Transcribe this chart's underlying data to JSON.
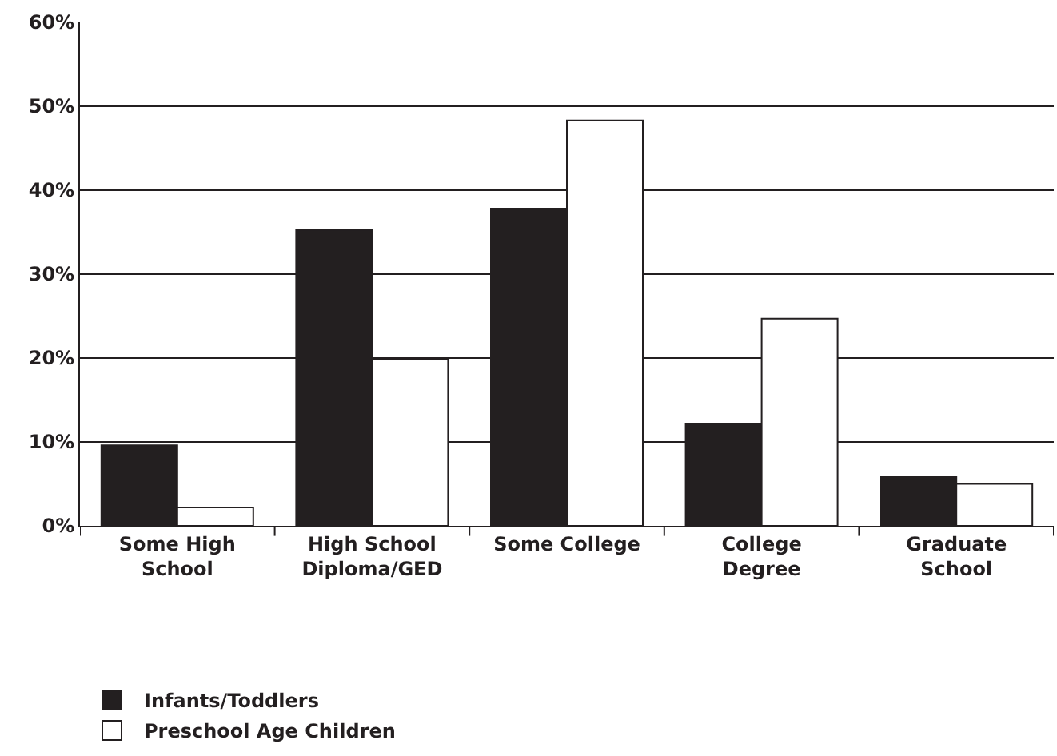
{
  "chart_data": {
    "type": "bar",
    "categories": [
      "Some High School",
      "High School Diploma/GED",
      "Some College",
      "College Degree",
      "Graduate School"
    ],
    "series": [
      {
        "name": "Infants/Toddlers",
        "color": "#231f20",
        "values": [
          9.6,
          35.3,
          37.8,
          12.2,
          5.8
        ]
      },
      {
        "name": "Preschool Age Children",
        "color": "#ffffff",
        "values": [
          2.2,
          19.8,
          48.3,
          24.7,
          5.0
        ]
      }
    ],
    "ylim": [
      0,
      60
    ],
    "yticks": [
      {
        "value": 0,
        "label": "0%"
      },
      {
        "value": 10,
        "label": "10%"
      },
      {
        "value": 20,
        "label": "20%"
      },
      {
        "value": 30,
        "label": "30%"
      },
      {
        "value": 40,
        "label": "40%"
      },
      {
        "value": 50,
        "label": "50%"
      },
      {
        "value": 60,
        "label": "60%"
      }
    ],
    "grid": "y",
    "legend": "bottom left"
  }
}
